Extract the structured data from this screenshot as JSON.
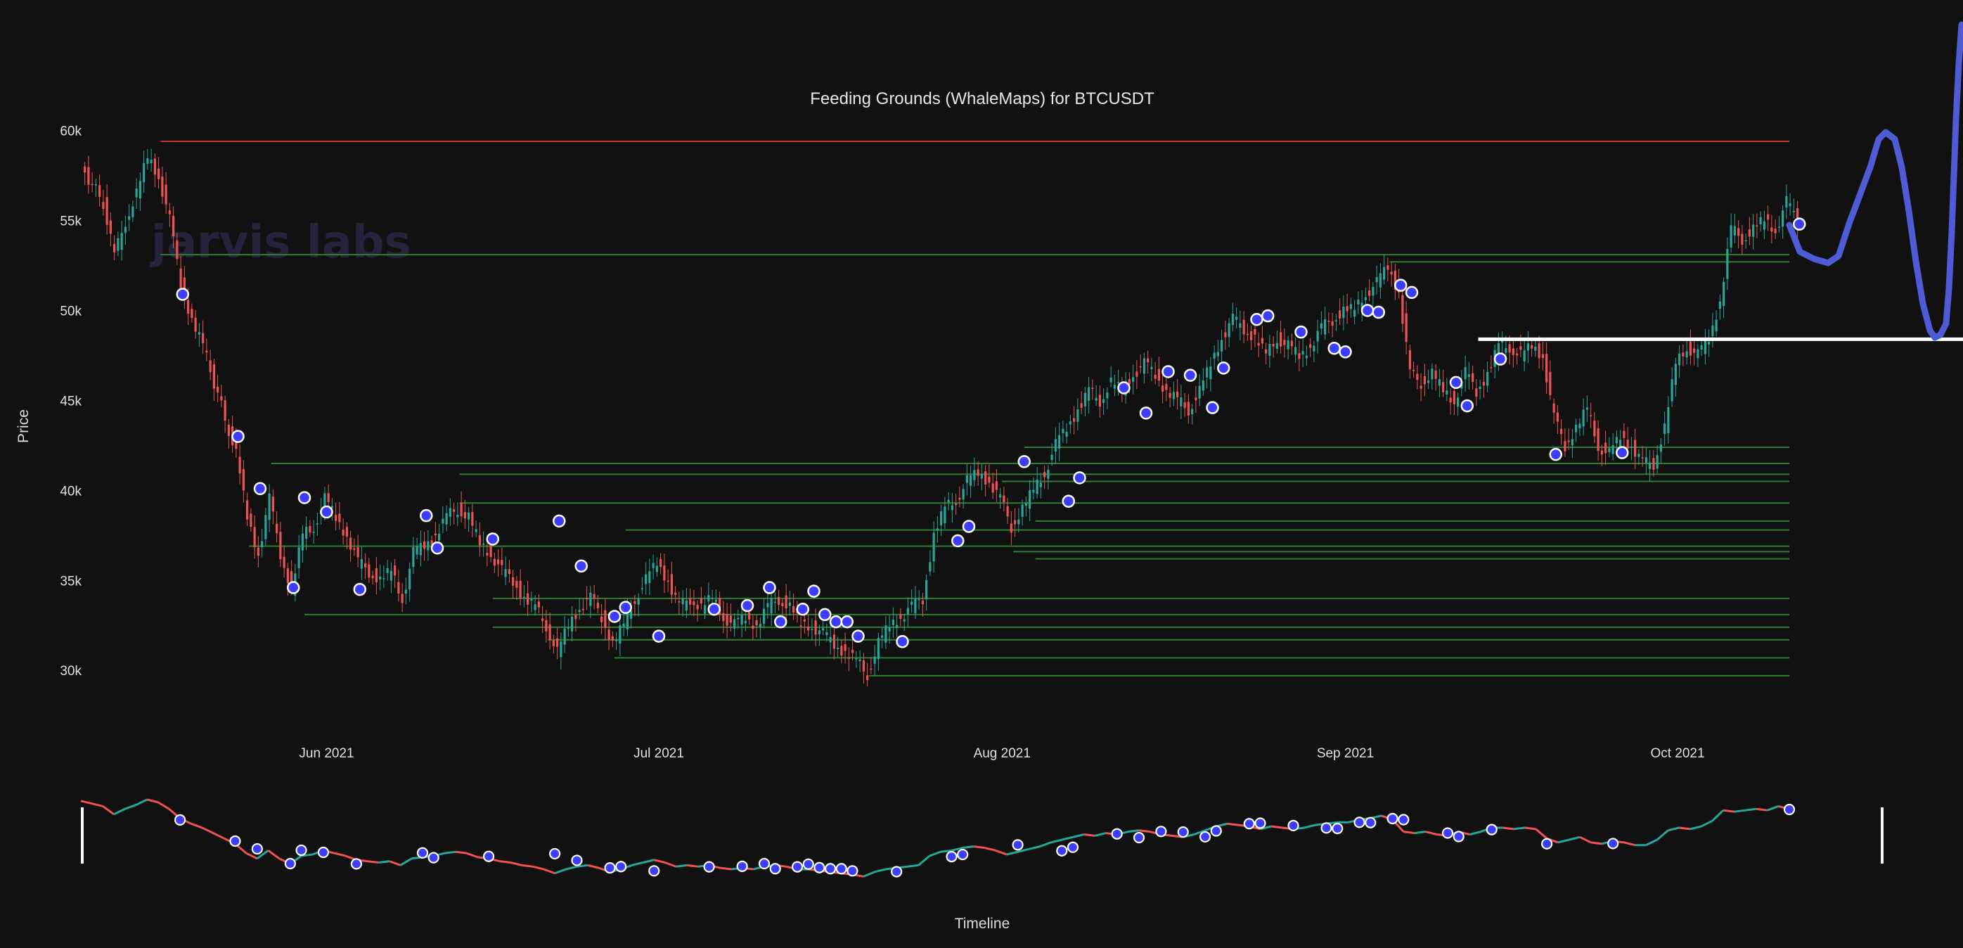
{
  "chart_data": {
    "type": "candlestick",
    "title": "Feeding Grounds (WhaleMaps) for BTCUSDT",
    "xlabel": "Timeline",
    "ylabel": "Price",
    "watermark": "jarvis labs",
    "x_ticks": [
      "Jun 2021",
      "Jul 2021",
      "Aug 2021",
      "Sep 2021",
      "Oct 2021"
    ],
    "y_ticks": [
      {
        "value": 30000,
        "label": "30k"
      },
      {
        "value": 35000,
        "label": "35k"
      },
      {
        "value": 40000,
        "label": "40k"
      },
      {
        "value": 45000,
        "label": "45k"
      },
      {
        "value": 50000,
        "label": "50k"
      },
      {
        "value": 55000,
        "label": "55k"
      },
      {
        "value": 60000,
        "label": "60k"
      }
    ],
    "ylim": [
      27000,
      61000
    ],
    "x_range": [
      "2021-05-10",
      "2021-10-13"
    ],
    "price_path": [
      [
        "2021-05-10",
        58000
      ],
      [
        "2021-05-12",
        56000
      ],
      [
        "2021-05-13",
        53000
      ],
      [
        "2021-05-14",
        55000
      ],
      [
        "2021-05-15",
        56500
      ],
      [
        "2021-05-16",
        58500
      ],
      [
        "2021-05-17",
        57500
      ],
      [
        "2021-05-18",
        55000
      ],
      [
        "2021-05-19",
        51500
      ],
      [
        "2021-05-20",
        49500
      ],
      [
        "2021-05-21",
        48000
      ],
      [
        "2021-05-23",
        44000
      ],
      [
        "2021-05-24",
        42000
      ],
      [
        "2021-05-25",
        38500
      ],
      [
        "2021-05-26",
        36500
      ],
      [
        "2021-05-27",
        39500
      ],
      [
        "2021-05-28",
        36500
      ],
      [
        "2021-05-29",
        34500
      ],
      [
        "2021-05-30",
        37500
      ],
      [
        "2021-05-31",
        38000
      ],
      [
        "2021-06-01",
        39500
      ],
      [
        "2021-06-02",
        38500
      ],
      [
        "2021-06-03",
        37500
      ],
      [
        "2021-06-04",
        36000
      ],
      [
        "2021-06-05",
        35500
      ],
      [
        "2021-06-06",
        35000
      ],
      [
        "2021-06-07",
        35500
      ],
      [
        "2021-06-08",
        34000
      ],
      [
        "2021-06-09",
        36500
      ],
      [
        "2021-06-10",
        37000
      ],
      [
        "2021-06-11",
        37500
      ],
      [
        "2021-06-12",
        38500
      ],
      [
        "2021-06-13",
        39000
      ],
      [
        "2021-06-14",
        38500
      ],
      [
        "2021-06-15",
        37000
      ],
      [
        "2021-06-16",
        36500
      ],
      [
        "2021-06-17",
        35500
      ],
      [
        "2021-06-18",
        35000
      ],
      [
        "2021-06-19",
        34000
      ],
      [
        "2021-06-20",
        33500
      ],
      [
        "2021-06-21",
        32500
      ],
      [
        "2021-06-22",
        31000
      ],
      [
        "2021-06-23",
        32500
      ],
      [
        "2021-06-24",
        33500
      ],
      [
        "2021-06-25",
        34000
      ],
      [
        "2021-06-26",
        33000
      ],
      [
        "2021-06-27",
        31500
      ],
      [
        "2021-06-28",
        32500
      ],
      [
        "2021-06-29",
        34000
      ],
      [
        "2021-06-30",
        35000
      ],
      [
        "2021-07-01",
        36000
      ],
      [
        "2021-07-02",
        35000
      ],
      [
        "2021-07-03",
        33500
      ],
      [
        "2021-07-04",
        34000
      ],
      [
        "2021-07-05",
        33500
      ],
      [
        "2021-07-06",
        34000
      ],
      [
        "2021-07-07",
        33000
      ],
      [
        "2021-07-08",
        32500
      ],
      [
        "2021-07-09",
        33000
      ],
      [
        "2021-07-10",
        32500
      ],
      [
        "2021-07-11",
        33500
      ],
      [
        "2021-07-12",
        34000
      ],
      [
        "2021-07-13",
        33500
      ],
      [
        "2021-07-14",
        32500
      ],
      [
        "2021-07-15",
        32500
      ],
      [
        "2021-07-16",
        32000
      ],
      [
        "2021-07-17",
        31500
      ],
      [
        "2021-07-18",
        31000
      ],
      [
        "2021-07-19",
        30500
      ],
      [
        "2021-07-20",
        29800
      ],
      [
        "2021-07-21",
        31500
      ],
      [
        "2021-07-22",
        32500
      ],
      [
        "2021-07-23",
        33000
      ],
      [
        "2021-07-24",
        33500
      ],
      [
        "2021-07-25",
        34000
      ],
      [
        "2021-07-26",
        37500
      ],
      [
        "2021-07-27",
        39000
      ],
      [
        "2021-07-28",
        39500
      ],
      [
        "2021-07-29",
        40500
      ],
      [
        "2021-07-30",
        41000
      ],
      [
        "2021-07-31",
        40500
      ],
      [
        "2021-08-01",
        39500
      ],
      [
        "2021-08-02",
        38000
      ],
      [
        "2021-08-03",
        39000
      ],
      [
        "2021-08-04",
        40000
      ],
      [
        "2021-08-05",
        41000
      ],
      [
        "2021-08-06",
        42500
      ],
      [
        "2021-08-07",
        43500
      ],
      [
        "2021-08-08",
        44500
      ],
      [
        "2021-08-09",
        45500
      ],
      [
        "2021-08-10",
        45000
      ],
      [
        "2021-08-11",
        46000
      ],
      [
        "2021-08-12",
        45500
      ],
      [
        "2021-08-13",
        46500
      ],
      [
        "2021-08-14",
        47000
      ],
      [
        "2021-08-15",
        46500
      ],
      [
        "2021-08-16",
        45500
      ],
      [
        "2021-08-17",
        45000
      ],
      [
        "2021-08-18",
        44500
      ],
      [
        "2021-08-19",
        45500
      ],
      [
        "2021-08-20",
        47000
      ],
      [
        "2021-08-21",
        48500
      ],
      [
        "2021-08-22",
        49500
      ],
      [
        "2021-08-23",
        49000
      ],
      [
        "2021-08-24",
        48500
      ],
      [
        "2021-08-25",
        47500
      ],
      [
        "2021-08-26",
        48500
      ],
      [
        "2021-08-27",
        48000
      ],
      [
        "2021-08-28",
        47500
      ],
      [
        "2021-08-29",
        48000
      ],
      [
        "2021-08-30",
        49000
      ],
      [
        "2021-08-31",
        49500
      ],
      [
        "2021-09-01",
        50000
      ],
      [
        "2021-09-02",
        50000
      ],
      [
        "2021-09-03",
        51000
      ],
      [
        "2021-09-04",
        51500
      ],
      [
        "2021-09-05",
        52500
      ],
      [
        "2021-09-06",
        51000
      ],
      [
        "2021-09-07",
        46500
      ],
      [
        "2021-09-08",
        46000
      ],
      [
        "2021-09-09",
        46500
      ],
      [
        "2021-09-10",
        45500
      ],
      [
        "2021-09-11",
        45000
      ],
      [
        "2021-09-12",
        46500
      ],
      [
        "2021-09-13",
        45500
      ],
      [
        "2021-09-14",
        46500
      ],
      [
        "2021-09-15",
        48000
      ],
      [
        "2021-09-16",
        48000
      ],
      [
        "2021-09-17",
        47500
      ],
      [
        "2021-09-18",
        48000
      ],
      [
        "2021-09-19",
        47500
      ],
      [
        "2021-09-20",
        44000
      ],
      [
        "2021-09-21",
        42500
      ],
      [
        "2021-09-22",
        43500
      ],
      [
        "2021-09-23",
        44500
      ],
      [
        "2021-09-24",
        42500
      ],
      [
        "2021-09-25",
        42000
      ],
      [
        "2021-09-26",
        43000
      ],
      [
        "2021-09-27",
        42500
      ],
      [
        "2021-09-28",
        41500
      ],
      [
        "2021-09-29",
        41500
      ],
      [
        "2021-09-30",
        43500
      ],
      [
        "2021-10-01",
        47000
      ],
      [
        "2021-10-02",
        48000
      ],
      [
        "2021-10-03",
        47500
      ],
      [
        "2021-10-04",
        48500
      ],
      [
        "2021-10-05",
        50500
      ],
      [
        "2021-10-06",
        54500
      ],
      [
        "2021-10-07",
        54000
      ],
      [
        "2021-10-08",
        54500
      ],
      [
        "2021-10-09",
        55000
      ],
      [
        "2021-10-10",
        54500
      ],
      [
        "2021-10-11",
        56000
      ],
      [
        "2021-10-12",
        55000
      ]
    ],
    "whale_markers": [
      [
        "2021-05-19",
        50900
      ],
      [
        "2021-05-24",
        43000
      ],
      [
        "2021-05-26",
        40100
      ],
      [
        "2021-05-29",
        34600
      ],
      [
        "2021-05-30",
        39600
      ],
      [
        "2021-06-01",
        38800
      ],
      [
        "2021-06-04",
        34500
      ],
      [
        "2021-06-10",
        38600
      ],
      [
        "2021-06-11",
        36800
      ],
      [
        "2021-06-16",
        37300
      ],
      [
        "2021-06-22",
        38300
      ],
      [
        "2021-06-24",
        35800
      ],
      [
        "2021-06-27",
        33000
      ],
      [
        "2021-06-28",
        33500
      ],
      [
        "2021-07-01",
        31900
      ],
      [
        "2021-07-06",
        33400
      ],
      [
        "2021-07-09",
        33600
      ],
      [
        "2021-07-11",
        34600
      ],
      [
        "2021-07-12",
        32700
      ],
      [
        "2021-07-14",
        33400
      ],
      [
        "2021-07-15",
        34400
      ],
      [
        "2021-07-16",
        33100
      ],
      [
        "2021-07-17",
        32700
      ],
      [
        "2021-07-18",
        32700
      ],
      [
        "2021-07-19",
        31900
      ],
      [
        "2021-07-23",
        31600
      ],
      [
        "2021-07-28",
        37200
      ],
      [
        "2021-07-29",
        38000
      ],
      [
        "2021-08-03",
        41600
      ],
      [
        "2021-08-07",
        39400
      ],
      [
        "2021-08-08",
        40700
      ],
      [
        "2021-08-12",
        45700
      ],
      [
        "2021-08-14",
        44300
      ],
      [
        "2021-08-16",
        46600
      ],
      [
        "2021-08-18",
        46400
      ],
      [
        "2021-08-20",
        44600
      ],
      [
        "2021-08-21",
        46800
      ],
      [
        "2021-08-24",
        49500
      ],
      [
        "2021-08-25",
        49700
      ],
      [
        "2021-08-28",
        48800
      ],
      [
        "2021-08-31",
        47900
      ],
      [
        "2021-09-01",
        47700
      ],
      [
        "2021-09-03",
        50000
      ],
      [
        "2021-09-04",
        49900
      ],
      [
        "2021-09-06",
        51400
      ],
      [
        "2021-09-07",
        51000
      ],
      [
        "2021-09-11",
        46000
      ],
      [
        "2021-09-12",
        44700
      ],
      [
        "2021-09-15",
        47300
      ],
      [
        "2021-09-20",
        42000
      ],
      [
        "2021-09-26",
        42100
      ],
      [
        "2021-10-12",
        54800
      ]
    ],
    "resistance_line": {
      "value": 59400,
      "from": "2021-05-17",
      "to": "2021-10-12",
      "color": "#c0392b"
    },
    "support_levels": [
      {
        "value": 53100,
        "from": "2021-05-17"
      },
      {
        "value": 52700,
        "from": "2021-09-05"
      },
      {
        "value": 42400,
        "from": "2021-08-03"
      },
      {
        "value": 41500,
        "from": "2021-05-27"
      },
      {
        "value": 40900,
        "from": "2021-06-13"
      },
      {
        "value": 40500,
        "from": "2021-08-01"
      },
      {
        "value": 39300,
        "from": "2021-06-13"
      },
      {
        "value": 38300,
        "from": "2021-08-04"
      },
      {
        "value": 37800,
        "from": "2021-06-28"
      },
      {
        "value": 36900,
        "from": "2021-05-25"
      },
      {
        "value": 36600,
        "from": "2021-08-02"
      },
      {
        "value": 36200,
        "from": "2021-08-04"
      },
      {
        "value": 34000,
        "from": "2021-06-16"
      },
      {
        "value": 33100,
        "from": "2021-05-30"
      },
      {
        "value": 32400,
        "from": "2021-06-16"
      },
      {
        "value": 31700,
        "from": "2021-06-21"
      },
      {
        "value": 30700,
        "from": "2021-06-27"
      },
      {
        "value": 29700,
        "from": "2021-07-20"
      }
    ],
    "drawn_level": {
      "value": 48400,
      "from": "2021-09-13",
      "color": "#ffffff"
    },
    "drawn_projection_color": "#4f5bd5",
    "colors": {
      "up": "#26a69a",
      "down": "#ef5350",
      "marker": "#3d3dff",
      "support": "#2e7d32"
    }
  }
}
